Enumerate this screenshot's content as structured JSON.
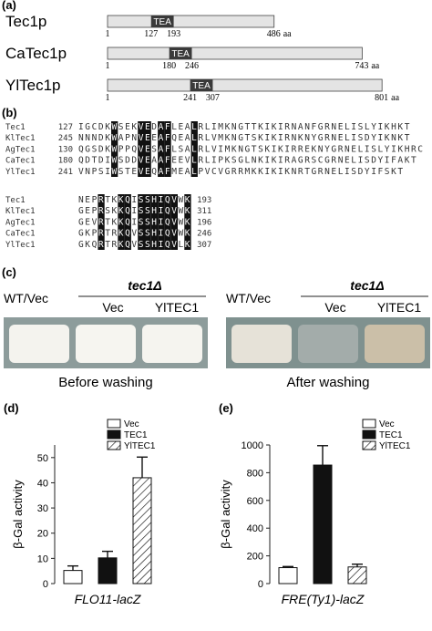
{
  "panel_a": {
    "label": "(a)",
    "proteins": [
      {
        "name": "Tec1p",
        "start": 1,
        "tea_start": 127,
        "tea_end": 193,
        "length": 486,
        "unit": "aa",
        "domain": "TEA"
      },
      {
        "name": "CaTec1p",
        "start": 1,
        "tea_start": 180,
        "tea_end": 246,
        "length": 743,
        "unit": "aa",
        "domain": "TEA"
      },
      {
        "name": "YlTec1p",
        "start": 1,
        "tea_start": 241,
        "tea_end": 307,
        "length": 801,
        "unit": "aa",
        "domain": "TEA"
      }
    ]
  },
  "panel_b": {
    "label": "(b)",
    "blocks": [
      [
        {
          "name": "Tec1",
          "start": 127,
          "seq": "IGCDKWSEKVEDAFLEALRLIMKNGTTKIKIRNANFGRNELISLYIKHKT"
        },
        {
          "name": "KlTec1",
          "start": 245,
          "seq": "NNNDKWAPNVEEAFQEALRLVMKNGTSKIKIRNKNYGRNELISDYIKNKT"
        },
        {
          "name": "AgTec1",
          "start": 130,
          "seq": "QGSDKWPPQVESAFLSALRLVIMKNGTSKIKIRREKNYGRNELISLYIKHRC"
        },
        {
          "name": "CaTec1",
          "start": 180,
          "seq": "QDTDIWSDDVEAAFEEVLRLIPKSGLNKIKIRAGRSCGRNELISDYIFAKT"
        },
        {
          "name": "YlTec1",
          "start": 241,
          "seq": "VNPSIWSTEVEQAFMEALPVCVGRRMKKIKIKNRTGRNELISDYIFSKT"
        }
      ],
      [
        {
          "name": "Tec1",
          "seq": "NEPRTKKQISSHIQVWK",
          "end": 193
        },
        {
          "name": "KlTec1",
          "seq": "GEPRSKKQISSHIQVWK",
          "end": 311
        },
        {
          "name": "AgTec1",
          "seq": "GEVRTKKQISSHIQVWK",
          "end": 196
        },
        {
          "name": "CaTec1",
          "seq": "GKPRTRKQVSSHIQVWK",
          "end": 246
        },
        {
          "name": "YlTec1",
          "seq": "GKQRTRKQVSSHIQVLK",
          "end": 307
        }
      ]
    ]
  },
  "panel_c": {
    "label": "(c)",
    "plates": [
      {
        "control": "WT/Vec",
        "mutant": "tec1Δ",
        "strains": [
          "Vec",
          "YlTEC1"
        ],
        "caption": "Before washing"
      },
      {
        "control": "WT/Vec",
        "mutant": "tec1Δ",
        "strains": [
          "Vec",
          "YlTEC1"
        ],
        "caption": "After washing"
      }
    ]
  },
  "chart_data": [
    {
      "type": "bar",
      "panel_label": "(d)",
      "categories": [
        "FLO11-lacZ"
      ],
      "y_label": "β-Gal activity",
      "ylim": [
        0,
        55
      ],
      "yticks": [
        0,
        10,
        20,
        30,
        40,
        50
      ],
      "series": [
        {
          "name": "Vec",
          "color": "#ffffff",
          "pattern": "solid",
          "values": [
            5.2
          ],
          "errors": [
            1.8
          ]
        },
        {
          "name": "TEC1",
          "color": "#111111",
          "pattern": "solid",
          "values": [
            10.2
          ],
          "errors": [
            2.6
          ]
        },
        {
          "name": "YlTEC1",
          "color": "#ffffff",
          "pattern": "hatch",
          "values": [
            42
          ],
          "errors": [
            8.2
          ]
        }
      ]
    },
    {
      "type": "bar",
      "panel_label": "(e)",
      "categories": [
        "FRE(Ty1)-lacZ"
      ],
      "y_label": "β-Gal activity",
      "ylim": [
        0,
        1000
      ],
      "yticks": [
        0,
        200,
        400,
        600,
        800,
        1000
      ],
      "series": [
        {
          "name": "Vec",
          "color": "#ffffff",
          "pattern": "solid",
          "values": [
            115
          ],
          "errors": [
            8
          ]
        },
        {
          "name": "TEC1",
          "color": "#111111",
          "pattern": "solid",
          "values": [
            855
          ],
          "errors": [
            140
          ]
        },
        {
          "name": "YlTEC1",
          "color": "#ffffff",
          "pattern": "hatch",
          "values": [
            120
          ],
          "errors": [
            20
          ]
        }
      ]
    }
  ]
}
